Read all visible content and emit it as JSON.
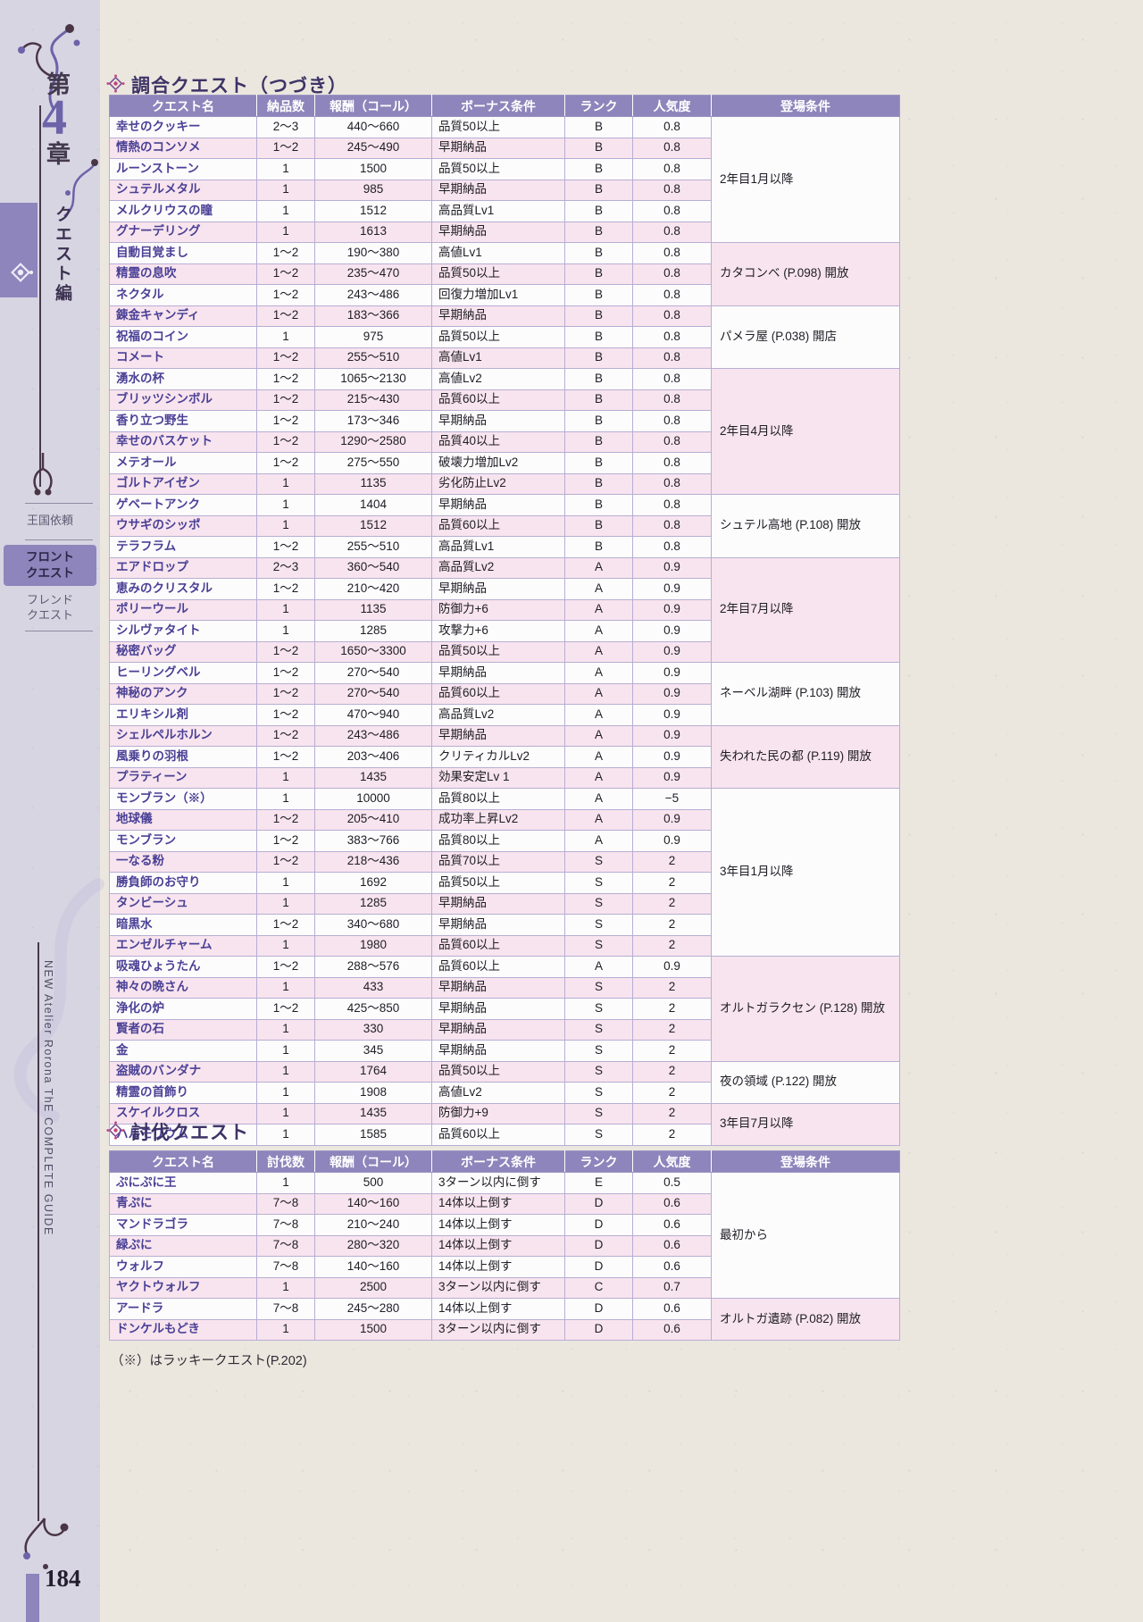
{
  "page": {
    "number": "184",
    "footnote": "（※）はラッキークエスト(P.202)"
  },
  "sidebar": {
    "chapter_prefix": "第",
    "chapter_number": "4",
    "chapter_suffix": "章",
    "edition": "クエスト編",
    "tabs": [
      {
        "lines": [
          "王国依頼"
        ],
        "active": false
      },
      {
        "lines": [
          "フロント",
          "クエスト"
        ],
        "active": true
      },
      {
        "lines": [
          "フレンド",
          "クエスト"
        ],
        "active": false
      }
    ],
    "book_title": "NEW Atelier Rorona ThE COMPLETE GUIDE"
  },
  "colors": {
    "accent": "#8d85bb",
    "row-pink": "#f8e4ee",
    "row-white": "#fdfcfd",
    "paper": "#ebe7df",
    "sidebar-bg": "#d8d5e3",
    "quest-name": "#4a4096",
    "title-color": "#3e3366",
    "icon-pink": "#c6447c",
    "border": "#b7aed4",
    "frame": "#9c93c3"
  },
  "tables": [
    {
      "title": "調合クエスト（つづき）",
      "headers": [
        "クエスト名",
        "納品数",
        "報酬（コール）",
        "ボーナス条件",
        "ランク",
        "人気度",
        "登場条件"
      ],
      "groups": [
        {
          "condition": "2年目1月以降",
          "rows": [
            [
              "幸せのクッキー",
              "2〜3",
              "440〜660",
              "品質50以上",
              "B",
              "0.8"
            ],
            [
              "情熱のコンソメ",
              "1〜2",
              "245〜490",
              "早期納品",
              "B",
              "0.8"
            ],
            [
              "ルーンストーン",
              "1",
              "1500",
              "品質50以上",
              "B",
              "0.8"
            ],
            [
              "シュテルメタル",
              "1",
              "985",
              "早期納品",
              "B",
              "0.8"
            ],
            [
              "メルクリウスの瞳",
              "1",
              "1512",
              "高品質Lv1",
              "B",
              "0.8"
            ],
            [
              "グナーデリング",
              "1",
              "1613",
              "早期納品",
              "B",
              "0.8"
            ]
          ]
        },
        {
          "condition": "カタコンベ (P.098) 開放",
          "rows": [
            [
              "自動目覚まし",
              "1〜2",
              "190〜380",
              "高値Lv1",
              "B",
              "0.8"
            ],
            [
              "精霊の息吹",
              "1〜2",
              "235〜470",
              "品質50以上",
              "B",
              "0.8"
            ],
            [
              "ネクタル",
              "1〜2",
              "243〜486",
              "回復力増加Lv1",
              "B",
              "0.8"
            ]
          ]
        },
        {
          "condition": "パメラ屋 (P.038) 開店",
          "rows": [
            [
              "錬金キャンディ",
              "1〜2",
              "183〜366",
              "早期納品",
              "B",
              "0.8"
            ],
            [
              "祝福のコイン",
              "1",
              "975",
              "品質50以上",
              "B",
              "0.8"
            ],
            [
              "コメート",
              "1〜2",
              "255〜510",
              "高値Lv1",
              "B",
              "0.8"
            ]
          ]
        },
        {
          "condition": "2年目4月以降",
          "rows": [
            [
              "湧水の杯",
              "1〜2",
              "1065〜2130",
              "高値Lv2",
              "B",
              "0.8"
            ],
            [
              "ブリッツシンボル",
              "1〜2",
              "215〜430",
              "品質60以上",
              "B",
              "0.8"
            ],
            [
              "香り立つ野生",
              "1〜2",
              "173〜346",
              "早期納品",
              "B",
              "0.8"
            ],
            [
              "幸せのバスケット",
              "1〜2",
              "1290〜2580",
              "品質40以上",
              "B",
              "0.8"
            ],
            [
              "メテオール",
              "1〜2",
              "275〜550",
              "破壊力増加Lv2",
              "B",
              "0.8"
            ],
            [
              "ゴルトアイゼン",
              "1",
              "1135",
              "劣化防止Lv2",
              "B",
              "0.8"
            ]
          ]
        },
        {
          "condition": "シュテル高地 (P.108) 開放",
          "rows": [
            [
              "ゲベートアンク",
              "1",
              "1404",
              "早期納品",
              "B",
              "0.8"
            ],
            [
              "ウサギのシッポ",
              "1",
              "1512",
              "品質60以上",
              "B",
              "0.8"
            ],
            [
              "テラフラム",
              "1〜2",
              "255〜510",
              "高品質Lv1",
              "B",
              "0.8"
            ]
          ]
        },
        {
          "condition": "2年目7月以降",
          "rows": [
            [
              "エアドロップ",
              "2〜3",
              "360〜540",
              "高品質Lv2",
              "A",
              "0.9"
            ],
            [
              "恵みのクリスタル",
              "1〜2",
              "210〜420",
              "早期納品",
              "A",
              "0.9"
            ],
            [
              "ポリーウール",
              "1",
              "1135",
              "防御力+6",
              "A",
              "0.9"
            ],
            [
              "シルヴァタイト",
              "1",
              "1285",
              "攻撃力+6",
              "A",
              "0.9"
            ],
            [
              "秘密バッグ",
              "1〜2",
              "1650〜3300",
              "品質50以上",
              "A",
              "0.9"
            ]
          ]
        },
        {
          "condition": "ネーベル湖畔 (P.103) 開放",
          "rows": [
            [
              "ヒーリングベル",
              "1〜2",
              "270〜540",
              "早期納品",
              "A",
              "0.9"
            ],
            [
              "神秘のアンク",
              "1〜2",
              "270〜540",
              "品質60以上",
              "A",
              "0.9"
            ],
            [
              "エリキシル剤",
              "1〜2",
              "470〜940",
              "高品質Lv2",
              "A",
              "0.9"
            ]
          ]
        },
        {
          "condition": "失われた民の都 (P.119) 開放",
          "rows": [
            [
              "シェルペルホルン",
              "1〜2",
              "243〜486",
              "早期納品",
              "A",
              "0.9"
            ],
            [
              "風乗りの羽根",
              "1〜2",
              "203〜406",
              "クリティカルLv2",
              "A",
              "0.9"
            ],
            [
              "プラティーン",
              "1",
              "1435",
              "効果安定Lv 1",
              "A",
              "0.9"
            ]
          ]
        },
        {
          "condition": "3年目1月以降",
          "rows": [
            [
              "モンブラン（※）",
              "1",
              "10000",
              "品質80以上",
              "A",
              "−5"
            ],
            [
              "地球儀",
              "1〜2",
              "205〜410",
              "成功率上昇Lv2",
              "A",
              "0.9"
            ],
            [
              "モンブラン",
              "1〜2",
              "383〜766",
              "品質80以上",
              "A",
              "0.9"
            ],
            [
              "一なる粉",
              "1〜2",
              "218〜436",
              "品質70以上",
              "S",
              "2"
            ],
            [
              "勝負師のお守り",
              "1",
              "1692",
              "品質50以上",
              "S",
              "2"
            ],
            [
              "タンビーシュ",
              "1",
              "1285",
              "早期納品",
              "S",
              "2"
            ],
            [
              "暗黒水",
              "1〜2",
              "340〜680",
              "早期納品",
              "S",
              "2"
            ],
            [
              "エンゼルチャーム",
              "1",
              "1980",
              "品質60以上",
              "S",
              "2"
            ]
          ]
        },
        {
          "condition": "オルトガラクセン (P.128) 開放",
          "rows": [
            [
              "吸魂ひょうたん",
              "1〜2",
              "288〜576",
              "品質60以上",
              "A",
              "0.9"
            ],
            [
              "神々の晩さん",
              "1",
              "433",
              "早期納品",
              "S",
              "2"
            ],
            [
              "浄化の炉",
              "1〜2",
              "425〜850",
              "早期納品",
              "S",
              "2"
            ],
            [
              "賢者の石",
              "1",
              "330",
              "早期納品",
              "S",
              "2"
            ],
            [
              "金",
              "1",
              "345",
              "早期納品",
              "S",
              "2"
            ]
          ]
        },
        {
          "condition": "夜の領域 (P.122) 開放",
          "rows": [
            [
              "盗賊のバンダナ",
              "1",
              "1764",
              "品質50以上",
              "S",
              "2"
            ],
            [
              "精霊の首飾り",
              "1",
              "1908",
              "高値Lv2",
              "S",
              "2"
            ]
          ]
        },
        {
          "condition": "3年目7月以降",
          "rows": [
            [
              "スケイルクロス",
              "1",
              "1435",
              "防御力+9",
              "S",
              "2"
            ],
            [
              "ハルモリウム",
              "1",
              "1585",
              "品質60以上",
              "S",
              "2"
            ]
          ]
        }
      ]
    },
    {
      "title": "討伐クエスト",
      "headers": [
        "クエスト名",
        "討伐数",
        "報酬（コール）",
        "ボーナス条件",
        "ランク",
        "人気度",
        "登場条件"
      ],
      "groups": [
        {
          "condition": "最初から",
          "rows": [
            [
              "ぷにぷに王",
              "1",
              "500",
              "3ターン以内に倒す",
              "E",
              "0.5"
            ],
            [
              "青ぷに",
              "7〜8",
              "140〜160",
              "14体以上倒す",
              "D",
              "0.6"
            ],
            [
              "マンドラゴラ",
              "7〜8",
              "210〜240",
              "14体以上倒す",
              "D",
              "0.6"
            ],
            [
              "緑ぷに",
              "7〜8",
              "280〜320",
              "14体以上倒す",
              "D",
              "0.6"
            ],
            [
              "ウォルフ",
              "7〜8",
              "140〜160",
              "14体以上倒す",
              "D",
              "0.6"
            ],
            [
              "ヤクトウォルフ",
              "1",
              "2500",
              "3ターン以内に倒す",
              "C",
              "0.7"
            ]
          ]
        },
        {
          "condition": "オルトガ遺跡 (P.082) 開放",
          "rows": [
            [
              "アードラ",
              "7〜8",
              "245〜280",
              "14体以上倒す",
              "D",
              "0.6"
            ],
            [
              "ドンケルもどき",
              "1",
              "1500",
              "3ターン以内に倒す",
              "D",
              "0.6"
            ]
          ]
        }
      ]
    }
  ]
}
